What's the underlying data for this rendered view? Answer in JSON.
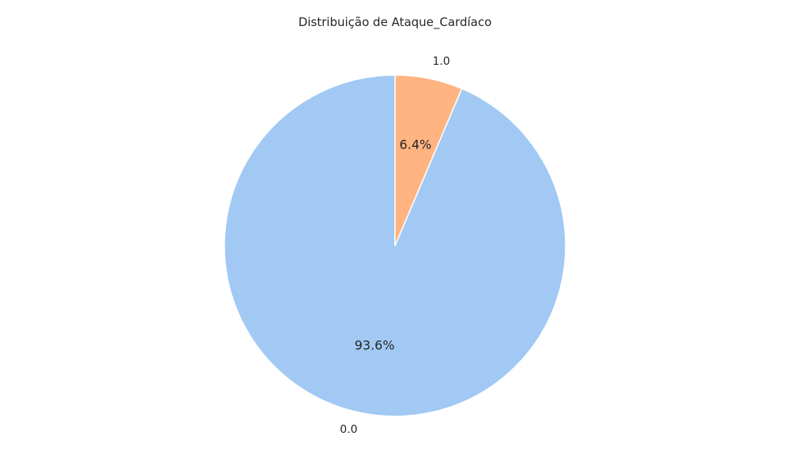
{
  "chart_data": {
    "type": "pie",
    "title": "Distribuição de Ataque_Cardíaco",
    "start_angle_deg": 90,
    "direction": "counterclockwise",
    "slices": [
      {
        "label": "0.0",
        "value": 93.6,
        "pct_label": "93.6%",
        "color": "#a1c9f4"
      },
      {
        "label": "1.0",
        "value": 6.4,
        "pct_label": "6.4%",
        "color": "#ffb482"
      }
    ],
    "edge_color": "#ffffff",
    "legend": "none"
  }
}
